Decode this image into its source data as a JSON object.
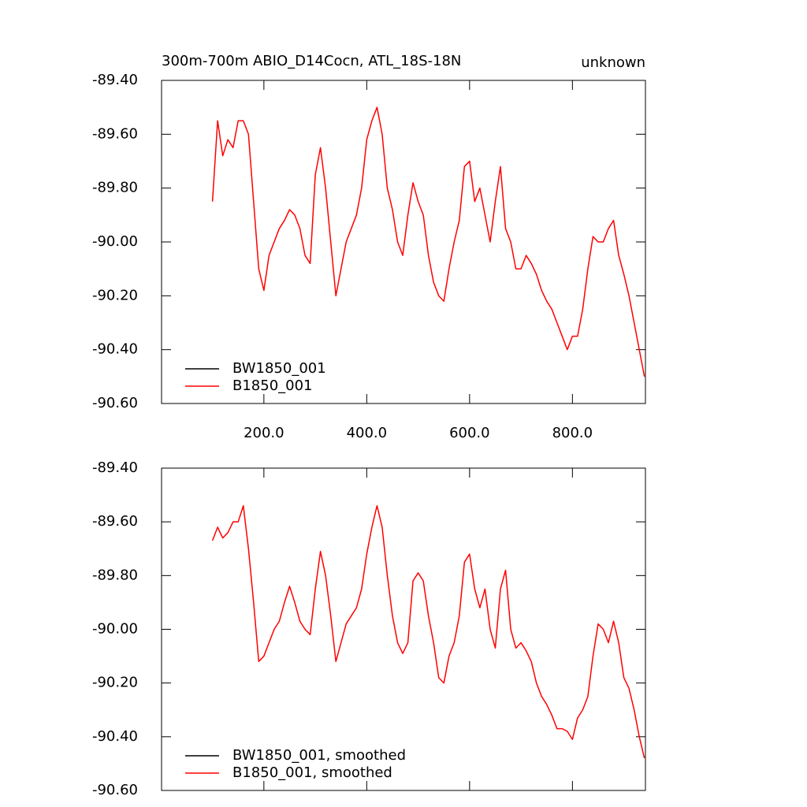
{
  "chart_data": [
    {
      "type": "line",
      "title": "300m-700m ABIO_D14Cocn, ATL_18S-18N",
      "right_title": "unknown",
      "x": [
        100,
        110,
        120,
        130,
        140,
        150,
        160,
        170,
        180,
        190,
        200,
        210,
        220,
        230,
        240,
        250,
        260,
        270,
        280,
        290,
        300,
        310,
        320,
        330,
        340,
        350,
        360,
        370,
        380,
        390,
        400,
        410,
        420,
        430,
        440,
        450,
        460,
        470,
        480,
        490,
        500,
        510,
        520,
        530,
        540,
        550,
        560,
        570,
        580,
        590,
        600,
        610,
        620,
        630,
        640,
        650,
        660,
        670,
        680,
        690,
        700,
        710,
        720,
        730,
        740,
        750,
        760,
        770,
        780,
        790,
        800,
        810,
        820,
        830,
        840,
        850,
        860,
        870,
        880,
        890,
        900,
        910,
        920,
        930,
        940
      ],
      "series": [
        {
          "name": "BW1850_001",
          "color": "#000000",
          "values": [
            null,
            null,
            null,
            null,
            null,
            null,
            null,
            null,
            null,
            null,
            null,
            null,
            null,
            null,
            null,
            null,
            null,
            null,
            null,
            null,
            null,
            null,
            null,
            null,
            null,
            null,
            null,
            null,
            null,
            null,
            null,
            null,
            null,
            null,
            null,
            null,
            null,
            null,
            null,
            null,
            null,
            null,
            null,
            null,
            null,
            null,
            null,
            null,
            null,
            null,
            null,
            null,
            null,
            null,
            null,
            null,
            null,
            null,
            null,
            null,
            null,
            null,
            null,
            null,
            null,
            null,
            null,
            null,
            null,
            null,
            null,
            null,
            null,
            null,
            null,
            null,
            null,
            null,
            null,
            null,
            null,
            null,
            null,
            null,
            null
          ]
        },
        {
          "name": "B1850_001",
          "color": "#ff0000",
          "values": [
            -89.85,
            -89.55,
            -89.68,
            -89.62,
            -89.65,
            -89.55,
            -89.55,
            -89.6,
            -89.85,
            -90.1,
            -90.18,
            -90.05,
            -90.0,
            -89.95,
            -89.92,
            -89.88,
            -89.9,
            -89.95,
            -90.05,
            -90.08,
            -89.75,
            -89.65,
            -89.8,
            -90.0,
            -90.2,
            -90.1,
            -90.0,
            -89.95,
            -89.9,
            -89.8,
            -89.62,
            -89.55,
            -89.5,
            -89.6,
            -89.8,
            -89.88,
            -90.0,
            -90.05,
            -89.9,
            -89.78,
            -89.85,
            -89.9,
            -90.05,
            -90.15,
            -90.2,
            -90.22,
            -90.1,
            -90.0,
            -89.92,
            -89.72,
            -89.7,
            -89.85,
            -89.8,
            -89.9,
            -90.0,
            -89.85,
            -89.72,
            -89.95,
            -90.0,
            -90.1,
            -90.1,
            -90.05,
            -90.08,
            -90.12,
            -90.18,
            -90.22,
            -90.25,
            -90.3,
            -90.35,
            -90.4,
            -90.35,
            -90.35,
            -90.25,
            -90.1,
            -89.98,
            -90.0,
            -90.0,
            -89.95,
            -89.92,
            -90.05,
            -90.12,
            -90.2,
            -90.3,
            -90.4,
            -90.5
          ]
        }
      ],
      "xlim": [
        1,
        942
      ],
      "xticks": [
        {
          "value": 200,
          "label": "200.0"
        },
        {
          "value": 400,
          "label": "400.0"
        },
        {
          "value": 600,
          "label": "600.0"
        },
        {
          "value": 800,
          "label": "800.0"
        }
      ],
      "ylim": [
        -90.6,
        -89.4
      ],
      "yticks": [
        {
          "value": -90.6,
          "label": "-90.60"
        },
        {
          "value": -90.4,
          "label": "-90.40"
        },
        {
          "value": -90.2,
          "label": "-90.20"
        },
        {
          "value": -90.0,
          "label": "-90.00"
        },
        {
          "value": -89.8,
          "label": "-89.80"
        },
        {
          "value": -89.6,
          "label": "-89.60"
        },
        {
          "value": -89.4,
          "label": "-89.40"
        }
      ],
      "legend": "lower left"
    },
    {
      "type": "line",
      "x": [
        100,
        110,
        120,
        130,
        140,
        150,
        160,
        170,
        180,
        190,
        200,
        210,
        220,
        230,
        240,
        250,
        260,
        270,
        280,
        290,
        300,
        310,
        320,
        330,
        340,
        350,
        360,
        370,
        380,
        390,
        400,
        410,
        420,
        430,
        440,
        450,
        460,
        470,
        480,
        490,
        500,
        510,
        520,
        530,
        540,
        550,
        560,
        570,
        580,
        590,
        600,
        610,
        620,
        630,
        640,
        650,
        660,
        670,
        680,
        690,
        700,
        710,
        720,
        730,
        740,
        750,
        760,
        770,
        780,
        790,
        800,
        810,
        820,
        830,
        840,
        850,
        860,
        870,
        880,
        890,
        900,
        910,
        920,
        930,
        940
      ],
      "series": [
        {
          "name": "BW1850_001, smoothed",
          "color": "#000000",
          "values": [
            null,
            null,
            null,
            null,
            null,
            null,
            null,
            null,
            null,
            null,
            null,
            null,
            null,
            null,
            null,
            null,
            null,
            null,
            null,
            null,
            null,
            null,
            null,
            null,
            null,
            null,
            null,
            null,
            null,
            null,
            null,
            null,
            null,
            null,
            null,
            null,
            null,
            null,
            null,
            null,
            null,
            null,
            null,
            null,
            null,
            null,
            null,
            null,
            null,
            null,
            null,
            null,
            null,
            null,
            null,
            null,
            null,
            null,
            null,
            null,
            null,
            null,
            null,
            null,
            null,
            null,
            null,
            null,
            null,
            null,
            null,
            null,
            null,
            null,
            null,
            null,
            null,
            null,
            null,
            null,
            null,
            null,
            null,
            null,
            null
          ]
        },
        {
          "name": "B1850_001, smoothed",
          "color": "#ff0000",
          "values": [
            -89.67,
            -89.62,
            -89.66,
            -89.64,
            -89.6,
            -89.6,
            -89.54,
            -89.7,
            -89.9,
            -90.12,
            -90.1,
            -90.05,
            -90.0,
            -89.97,
            -89.9,
            -89.84,
            -89.9,
            -89.97,
            -90.0,
            -90.02,
            -89.85,
            -89.71,
            -89.8,
            -89.95,
            -90.12,
            -90.05,
            -89.98,
            -89.95,
            -89.92,
            -89.85,
            -89.72,
            -89.62,
            -89.54,
            -89.62,
            -89.8,
            -89.95,
            -90.05,
            -90.09,
            -90.05,
            -89.82,
            -89.79,
            -89.82,
            -89.95,
            -90.05,
            -90.18,
            -90.2,
            -90.1,
            -90.05,
            -89.95,
            -89.75,
            -89.72,
            -89.85,
            -89.92,
            -89.85,
            -90.0,
            -90.07,
            -89.85,
            -89.78,
            -90.0,
            -90.07,
            -90.05,
            -90.08,
            -90.12,
            -90.2,
            -90.25,
            -90.28,
            -90.32,
            -90.37,
            -90.37,
            -90.38,
            -90.41,
            -90.33,
            -90.3,
            -90.25,
            -90.1,
            -89.98,
            -90.0,
            -90.05,
            -89.97,
            -90.05,
            -90.18,
            -90.22,
            -90.3,
            -90.4,
            -90.48
          ]
        }
      ],
      "xlim": [
        1,
        942
      ],
      "xticks": [
        200,
        400,
        600,
        800
      ],
      "xtick_labels": false,
      "ylim": [
        -90.6,
        -89.4
      ],
      "yticks": [
        {
          "value": -90.6,
          "label": "-90.60"
        },
        {
          "value": -90.4,
          "label": "-90.40"
        },
        {
          "value": -90.2,
          "label": "-90.20"
        },
        {
          "value": -90.0,
          "label": "-90.00"
        },
        {
          "value": -89.8,
          "label": "-89.80"
        },
        {
          "value": -89.6,
          "label": "-89.60"
        },
        {
          "value": -89.4,
          "label": "-89.40"
        }
      ],
      "legend": "lower left"
    }
  ]
}
